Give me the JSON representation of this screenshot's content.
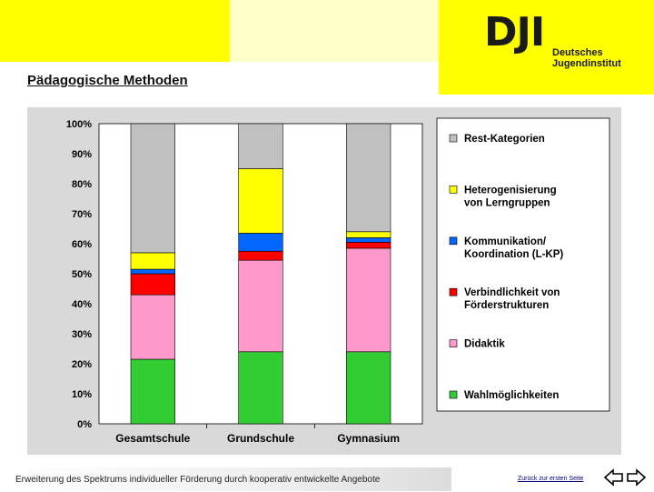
{
  "header": {
    "logo_mark": "DJI",
    "logo_text_line1": "Deutsches",
    "logo_text_line2": "Jugendinstitut"
  },
  "page_title": "Pädagogische Methoden",
  "footer": {
    "caption": "Erweiterung des Spektrums individueller Förderung durch kooperativ entwickelte Angebote",
    "back_link": "Zurück zur ersten Seite"
  },
  "chart_data": {
    "type": "bar",
    "stacked": true,
    "categories": [
      "Gesamtschule",
      "Grundschule",
      "Gymnasium"
    ],
    "ylim": [
      0,
      100
    ],
    "yticks": [
      "0%",
      "10%",
      "20%",
      "30%",
      "40%",
      "50%",
      "60%",
      "70%",
      "80%",
      "90%",
      "100%"
    ],
    "grid": false,
    "legend_position": "right",
    "series": [
      {
        "name": "Wahlmöglichkeiten",
        "color": "#33cc33",
        "values": [
          21.5,
          24,
          24
        ]
      },
      {
        "name": "Didaktik",
        "color": "#ff99cc",
        "values": [
          21.5,
          30.5,
          34.5
        ]
      },
      {
        "name": "Verbindlichkeit von Förderstrukturen",
        "color": "#ff0000",
        "values": [
          7,
          3,
          2
        ]
      },
      {
        "name": "Kommunikation/ Koordination (L-KP)",
        "color": "#0066ff",
        "values": [
          1.5,
          6,
          1.5
        ]
      },
      {
        "name": "Heterogenisierung von Lerngruppen",
        "color": "#ffff00",
        "values": [
          5.5,
          21.5,
          2
        ]
      },
      {
        "name": "Rest-Kategorien",
        "color": "#c0c0c0",
        "values": [
          43,
          15,
          36
        ]
      }
    ]
  }
}
